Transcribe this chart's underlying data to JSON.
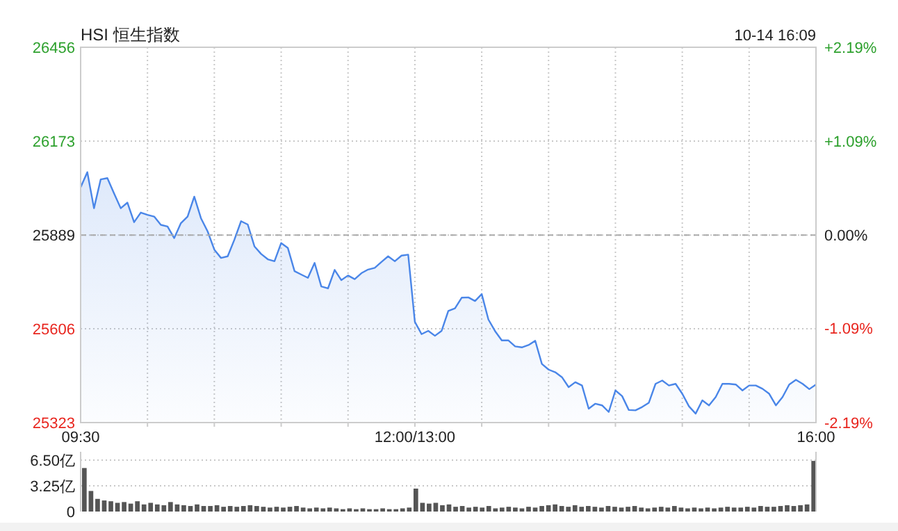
{
  "chart_data": [
    {
      "type": "area",
      "title": "HSI 恒生指数",
      "annotations": [
        "10-14 16:09"
      ],
      "categories": [
        "09:30",
        null,
        null,
        null,
        null,
        null,
        null,
        null,
        null,
        null,
        null,
        null,
        null,
        null,
        null,
        null,
        null,
        null,
        null,
        null,
        null,
        null,
        null,
        null,
        null,
        null,
        null,
        null,
        null,
        null,
        null,
        null,
        null,
        null,
        null,
        null,
        null,
        null,
        null,
        null,
        null,
        null,
        null,
        null,
        null,
        null,
        null,
        null,
        null,
        null,
        "12:00/13:00",
        null,
        null,
        null,
        null,
        null,
        null,
        null,
        null,
        null,
        null,
        null,
        null,
        null,
        null,
        null,
        null,
        null,
        null,
        null,
        null,
        null,
        null,
        null,
        null,
        null,
        null,
        null,
        null,
        null,
        null,
        null,
        null,
        null,
        null,
        null,
        null,
        null,
        null,
        null,
        null,
        null,
        null,
        null,
        null,
        null,
        null,
        null,
        null,
        null,
        null,
        null,
        null,
        null,
        null,
        null,
        null,
        null,
        null,
        null,
        "16:00"
      ],
      "series": [
        {
          "color": "#4a86e8",
          "values": [
            26033,
            26079,
            25970,
            26057,
            26061,
            26015,
            25970,
            25987,
            25928,
            25957,
            25950,
            25945,
            25920,
            25915,
            25880,
            25925,
            25945,
            26005,
            25940,
            25900,
            25845,
            25820,
            25825,
            25875,
            25931,
            25921,
            25855,
            25832,
            25816,
            25810,
            25865,
            25850,
            25780,
            25770,
            25760,
            25805,
            25734,
            25728,
            25784,
            25753,
            25767,
            25756,
            25774,
            25785,
            25790,
            25808,
            25825,
            25810,
            25827,
            25830,
            25627,
            25590,
            25600,
            25585,
            25600,
            25660,
            25668,
            25700,
            25701,
            25690,
            25711,
            25634,
            25599,
            25571,
            25571,
            25553,
            25550,
            25557,
            25570,
            25500,
            25483,
            25475,
            25460,
            25430,
            25445,
            25435,
            25365,
            25380,
            25375,
            25355,
            25420,
            25403,
            25361,
            25360,
            25370,
            25383,
            25440,
            25450,
            25435,
            25440,
            25410,
            25372,
            25350,
            25390,
            25375,
            25400,
            25440,
            25440,
            25438,
            25420,
            25435,
            25435,
            25425,
            25410,
            25375,
            25400,
            25438,
            25452,
            25440,
            25424,
            25438
          ]
        }
      ],
      "ylim": [
        25323,
        26456
      ],
      "yticks": [
        25323,
        25606,
        25889,
        26173,
        26456
      ],
      "y2lim": [
        -2.19,
        2.19
      ],
      "y2ticks": [
        {
          "value": -2.19,
          "label": "-2.19%"
        },
        {
          "value": -1.09,
          "label": "-1.09%"
        },
        {
          "value": 0,
          "label": "0.00%"
        },
        {
          "value": 1.09,
          "label": "+1.09%"
        },
        {
          "value": 2.19,
          "label": "+2.19%"
        }
      ],
      "ref_lines": [
        {
          "axis": "y",
          "value": 25889,
          "line_style": "dashed"
        }
      ],
      "grid": true
    },
    {
      "type": "bar",
      "categories": [
        null,
        null,
        null,
        null,
        null,
        null,
        null,
        null,
        null,
        null,
        null,
        null,
        null,
        null,
        null,
        null,
        null,
        null,
        null,
        null,
        null,
        null,
        null,
        null,
        null,
        null,
        null,
        null,
        null,
        null,
        null,
        null,
        null,
        null,
        null,
        null,
        null,
        null,
        null,
        null,
        null,
        null,
        null,
        null,
        null,
        null,
        null,
        null,
        null,
        null,
        null,
        null,
        null,
        null,
        null,
        null,
        null,
        null,
        null,
        null,
        null,
        null,
        null,
        null,
        null,
        null,
        null,
        null,
        null,
        null,
        null,
        null,
        null,
        null,
        null,
        null,
        null,
        null,
        null,
        null,
        null,
        null,
        null,
        null,
        null,
        null,
        null,
        null,
        null,
        null,
        null,
        null,
        null,
        null,
        null,
        null,
        null,
        null,
        null,
        null,
        null,
        null,
        null,
        null,
        null,
        null,
        null,
        null,
        null,
        null,
        null
      ],
      "values": [
        5.5,
        2.6,
        1.6,
        1.4,
        1.3,
        1.1,
        1.2,
        1.0,
        1.3,
        0.9,
        1.1,
        0.9,
        0.8,
        1.2,
        0.9,
        0.8,
        0.7,
        0.9,
        0.7,
        0.7,
        0.8,
        0.6,
        0.7,
        0.6,
        0.7,
        0.8,
        0.7,
        0.6,
        0.5,
        0.6,
        0.5,
        0.6,
        0.7,
        0.5,
        0.4,
        0.5,
        0.4,
        0.5,
        0.4,
        0.3,
        0.4,
        0.3,
        0.4,
        0.3,
        0.3,
        0.4,
        0.3,
        0.3,
        0.4,
        0.5,
        2.9,
        1.1,
        1.0,
        1.1,
        0.8,
        0.9,
        0.6,
        0.7,
        0.5,
        0.6,
        0.5,
        0.7,
        0.4,
        0.5,
        0.6,
        0.5,
        0.4,
        0.6,
        0.5,
        0.7,
        0.8,
        0.9,
        0.7,
        0.6,
        0.8,
        0.6,
        0.7,
        0.6,
        0.5,
        0.7,
        0.6,
        0.5,
        0.6,
        0.7,
        0.5,
        0.4,
        0.5,
        0.6,
        0.5,
        0.7,
        0.5,
        0.4,
        0.5,
        0.4,
        0.5,
        0.4,
        0.5,
        0.6,
        0.5,
        0.5,
        0.6,
        0.5,
        0.7,
        0.6,
        0.6,
        0.7,
        0.8,
        0.7,
        0.8,
        0.9,
        6.4
      ],
      "color": "#555555",
      "ylim": [
        0,
        6.5
      ],
      "yticks": [
        0,
        {
          "value": 3.25,
          "label": "3.25亿"
        },
        {
          "value": 6.5,
          "label": "6.50亿"
        }
      ],
      "tick_labels": "y",
      "grid": "y"
    }
  ]
}
